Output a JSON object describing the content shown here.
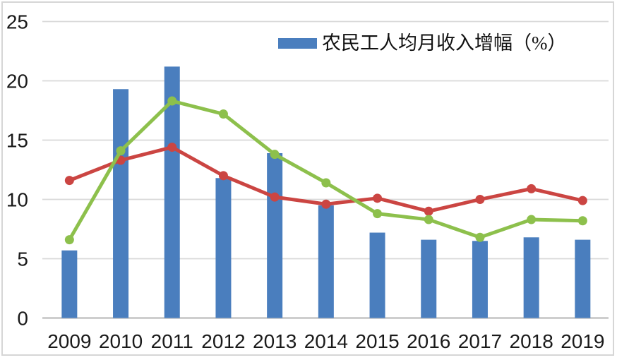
{
  "chart_data": {
    "type": "bar",
    "subtype": "bar-and-line-combo",
    "title": "",
    "xlabel": "",
    "ylabel": "",
    "categories": [
      "2009",
      "2010",
      "2011",
      "2012",
      "2013",
      "2014",
      "2015",
      "2016",
      "2017",
      "2018",
      "2019"
    ],
    "series": [
      {
        "id": "bar-income-growth",
        "name": "农民工人均月收入增幅（%）",
        "type": "bar",
        "color": "#4a7ebe",
        "in_legend": true,
        "values": [
          5.7,
          19.3,
          21.2,
          11.8,
          13.9,
          9.5,
          7.2,
          6.6,
          6.5,
          6.8,
          6.6
        ]
      },
      {
        "id": "line-red",
        "name": "red-line",
        "type": "line",
        "color": "#cb4542",
        "in_legend": false,
        "values": [
          11.6,
          13.3,
          14.4,
          12.0,
          10.2,
          9.6,
          10.1,
          9.0,
          10.0,
          10.9,
          9.9
        ]
      },
      {
        "id": "line-green",
        "name": "green-line",
        "type": "line",
        "color": "#8dc04c",
        "in_legend": false,
        "values": [
          6.6,
          14.1,
          18.3,
          17.2,
          13.8,
          11.4,
          8.8,
          8.3,
          6.8,
          8.3,
          8.2
        ]
      }
    ],
    "ylim": [
      0,
      25
    ],
    "yticks": [
      0,
      5,
      10,
      15,
      20,
      25
    ],
    "grid": true,
    "legend_position": "top-center",
    "colors": {
      "gridline": "#d9d9d9",
      "axis_line": "#c3c3c3",
      "tick_text": "#1a1a1a",
      "frame_border": "#d6d6d6"
    }
  },
  "legend": {
    "bar_label": "农民工人均月收入增幅（%）"
  }
}
